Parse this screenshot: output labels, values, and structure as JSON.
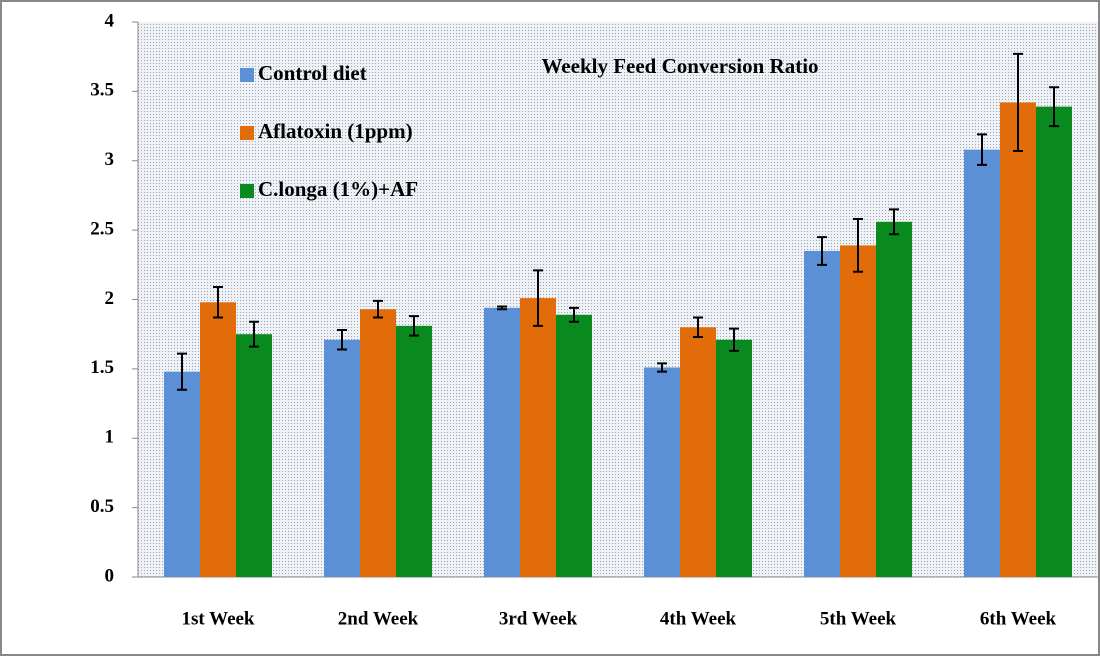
{
  "chart_data": {
    "type": "bar",
    "title": "Weekly Feed Conversion Ratio",
    "categories": [
      "1st Week",
      "2nd  Week",
      "3rd  Week",
      "4th  Week",
      "5th  Week",
      "6th  Week"
    ],
    "series": [
      {
        "name": "Control diet",
        "color": "#5b8fd6",
        "values": [
          1.48,
          1.71,
          1.94,
          1.51,
          2.35,
          3.08
        ],
        "errors": [
          0.13,
          0.07,
          0.01,
          0.03,
          0.1,
          0.11
        ]
      },
      {
        "name": "Aflatoxin (1ppm)",
        "color": "#e36c0a",
        "values": [
          1.98,
          1.93,
          2.01,
          1.8,
          2.39,
          3.42
        ],
        "errors": [
          0.11,
          0.06,
          0.2,
          0.07,
          0.19,
          0.35
        ]
      },
      {
        "name": "C.longa (1%)+AF",
        "color": "#0a8a1e",
        "values": [
          1.75,
          1.81,
          1.89,
          1.71,
          2.56,
          3.39
        ],
        "errors": [
          0.09,
          0.07,
          0.05,
          0.08,
          0.09,
          0.14
        ]
      }
    ],
    "ylim": [
      0,
      4
    ],
    "yticks": [
      0,
      0.5,
      1,
      1.5,
      2,
      2.5,
      3,
      3.5,
      4
    ],
    "grid": false,
    "legend": "top-left"
  }
}
